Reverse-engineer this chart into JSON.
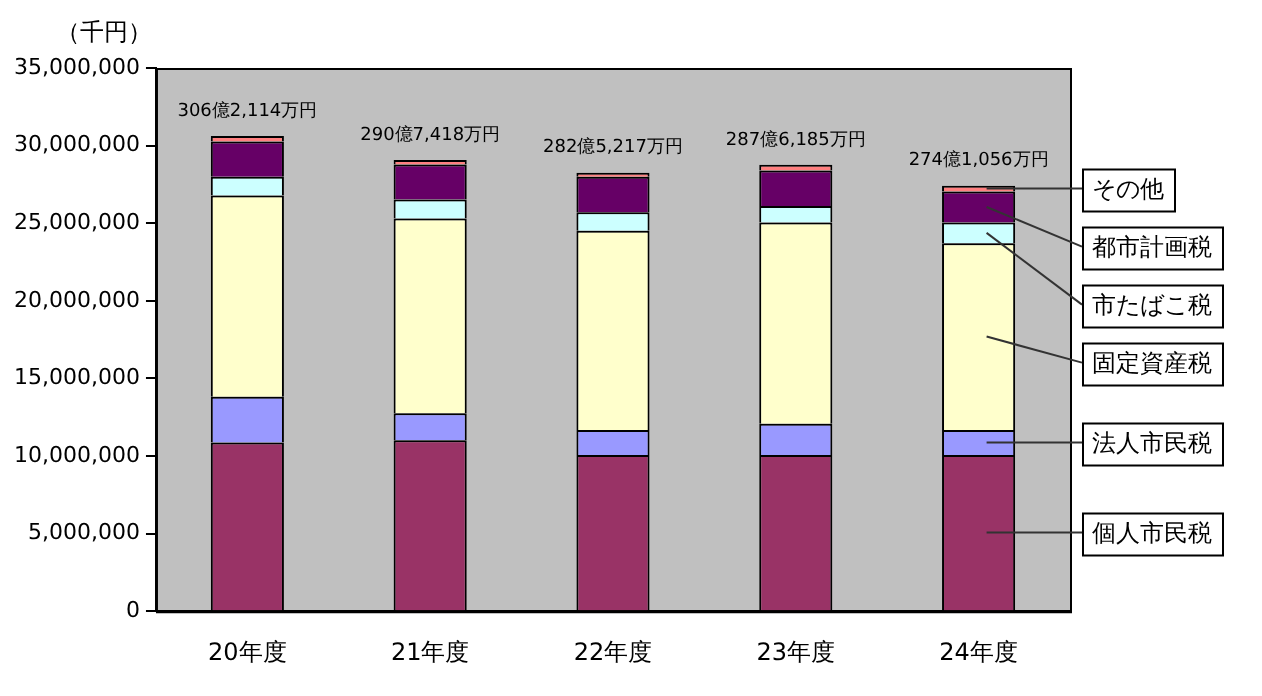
{
  "chart_data": {
    "type": "bar",
    "stacked": true,
    "ylabel": "（千円）",
    "categories": [
      "20年度",
      "21年度",
      "22年度",
      "23年度",
      "24年度"
    ],
    "series": [
      {
        "name": "個人市民税",
        "color": "#993366",
        "values": [
          10870000,
          11010000,
          10070000,
          10070000,
          10070000
        ]
      },
      {
        "name": "法人市民税",
        "color": "#9999ff",
        "values": [
          2940000,
          1740000,
          1610000,
          2010000,
          1610000
        ]
      },
      {
        "name": "固定資産税",
        "color": "#ffffcc",
        "values": [
          12970000,
          12560000,
          12830000,
          12960000,
          12030000
        ]
      },
      {
        "name": "市たばこ税",
        "color": "#ccffff",
        "values": [
          1210000,
          1210000,
          1200000,
          1070000,
          1330000
        ]
      },
      {
        "name": "都市計画税",
        "color": "#660066",
        "values": [
          2270000,
          2270000,
          2280000,
          2280000,
          2010000
        ]
      },
      {
        "name": "その他",
        "color": "#ff8080",
        "values": [
          360000,
          280000,
          260000,
          370000,
          360000
        ]
      }
    ],
    "totals": [
      "306億2,114万円",
      "290億7,418万円",
      "282億5,217万円",
      "287億6,185万円",
      "274億1,056万円"
    ],
    "ylim": [
      0,
      35000000
    ],
    "yticks": [
      {
        "value": 0,
        "label": "0"
      },
      {
        "value": 5000000,
        "label": "5,000,000"
      },
      {
        "value": 10000000,
        "label": "10,000,000"
      },
      {
        "value": 15000000,
        "label": "15,000,000"
      },
      {
        "value": 20000000,
        "label": "20,000,000"
      },
      {
        "value": 25000000,
        "label": "25,000,000"
      },
      {
        "value": 30000000,
        "label": "30,000,000"
      },
      {
        "value": 35000000,
        "label": "35,000,000"
      }
    ],
    "grid": false,
    "legend": false
  }
}
